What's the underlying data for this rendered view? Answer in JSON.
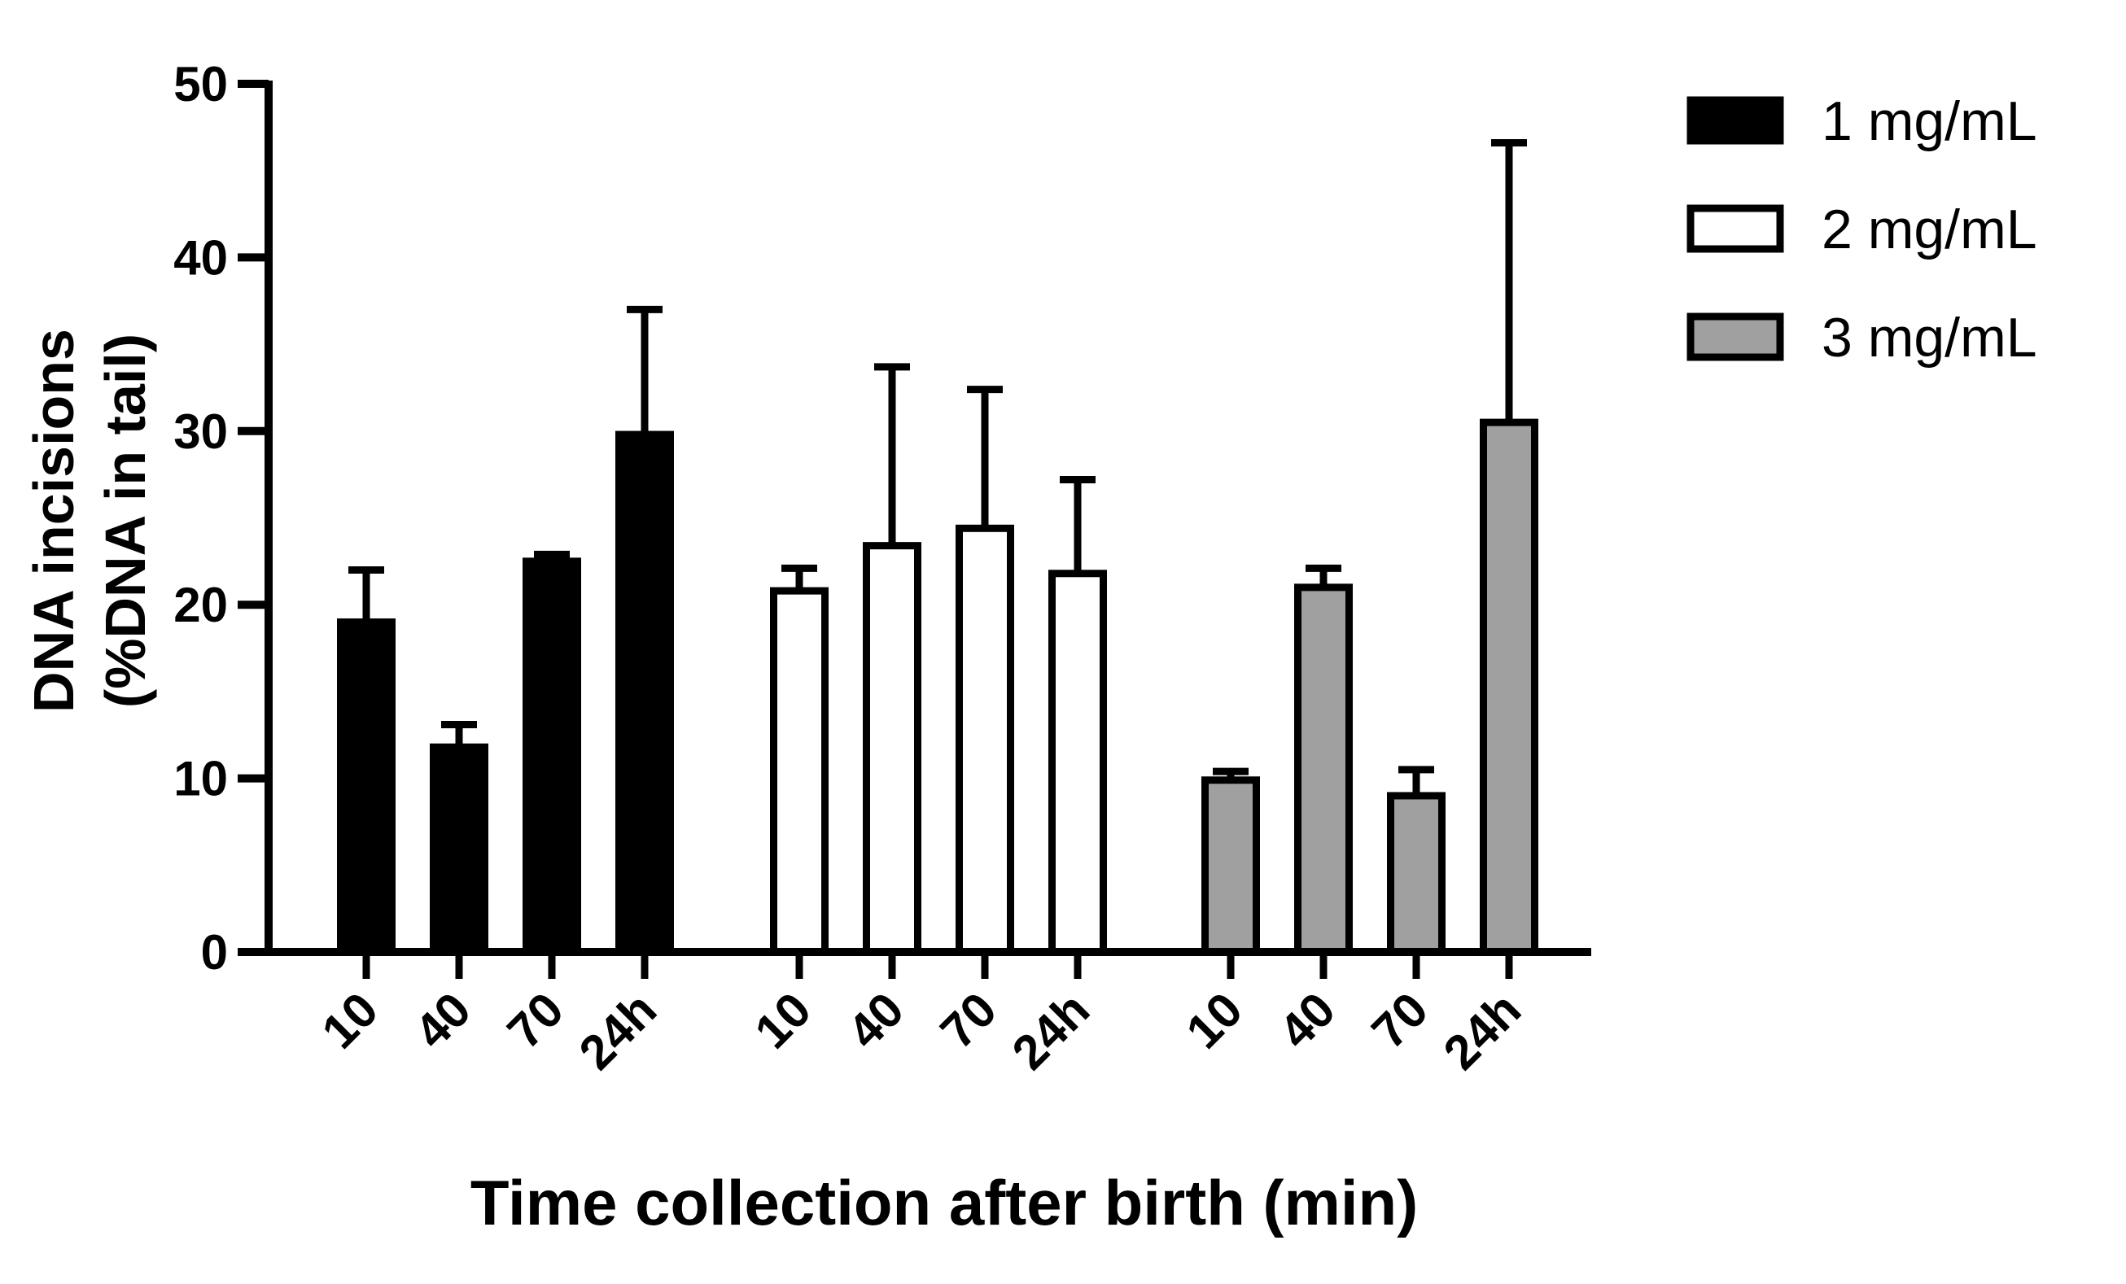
{
  "chart_data": {
    "type": "bar",
    "title": "",
    "xlabel": "Time collection after birth (min)",
    "ylabel_line1": "DNA incisions",
    "ylabel_line2": "(%DNA in tail)",
    "ylim": [
      0,
      50
    ],
    "yticks": [
      0,
      10,
      20,
      30,
      40,
      50
    ],
    "categories": [
      "10",
      "40",
      "70",
      "24h"
    ],
    "series": [
      {
        "name": "1 mg/mL",
        "fill": "#000000",
        "values": [
          19.0,
          11.8,
          22.5,
          29.8
        ],
        "errors": [
          3.0,
          1.3,
          0.4,
          7.2
        ]
      },
      {
        "name": "2 mg/mL",
        "fill": "#ffffff",
        "values": [
          20.8,
          23.4,
          24.4,
          21.8
        ],
        "errors": [
          1.3,
          10.3,
          8.0,
          5.4
        ]
      },
      {
        "name": "3 mg/mL",
        "fill": "#a0a0a0",
        "values": [
          9.9,
          21.0,
          9.0,
          30.5
        ],
        "errors": [
          0.5,
          1.1,
          1.5,
          16.1
        ]
      }
    ],
    "legend_position": "top-right"
  }
}
